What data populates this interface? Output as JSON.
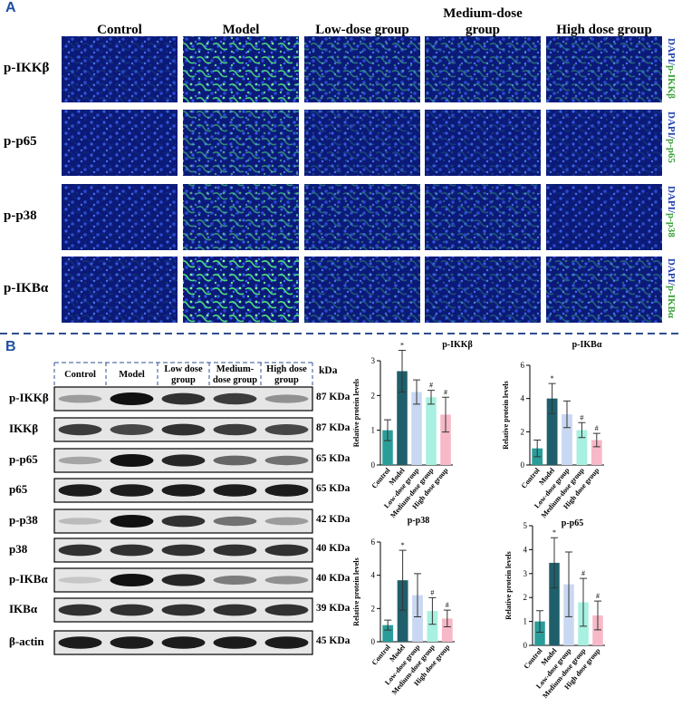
{
  "panel_a": {
    "label": "A",
    "columns": [
      "Control",
      "Model",
      "Low-dose group",
      "Medium-dose group",
      "High dose group"
    ],
    "rows": [
      {
        "label": "p-IKKβ",
        "stain": [
          "DAPI/",
          "p-IKKβ"
        ]
      },
      {
        "label": "p-p65",
        "stain": [
          "DAPI/",
          "p-p65"
        ]
      },
      {
        "label": "p-p38",
        "stain": [
          "DAPI/",
          "p-p38"
        ]
      },
      {
        "label": "p-IKBα",
        "stain": [
          "DAPI/",
          "p-IKBα"
        ]
      }
    ]
  },
  "panel_b": {
    "label": "B",
    "groups": [
      "Control",
      "Model",
      "Low dose group",
      "Medium-dose group",
      "High dose group"
    ],
    "kda_header": "kDa",
    "rows": [
      {
        "label": "p-IKKβ",
        "kda": "87 KDa"
      },
      {
        "label": "IKKβ",
        "kda": "87 KDa"
      },
      {
        "label": "p-p65",
        "kda": "65 KDa"
      },
      {
        "label": "p65",
        "kda": "65 KDa"
      },
      {
        "label": "p-p38",
        "kda": "42 KDa"
      },
      {
        "label": "p38",
        "kda": "40 KDa"
      },
      {
        "label": "p-IKBα",
        "kda": "40 KDa"
      },
      {
        "label": "IKBα",
        "kda": "39 KDa"
      },
      {
        "label": "β-actin",
        "kda": "45 KDa"
      }
    ]
  },
  "chart_data": [
    {
      "type": "bar",
      "title": "p-IKKβ",
      "y_label": "Relative protein levels",
      "categories": [
        "Control",
        "Model",
        "Low-dose group",
        "Medium-dose group",
        "High dose group"
      ],
      "values": [
        1.0,
        2.7,
        2.1,
        1.95,
        1.45
      ],
      "errors": [
        0.3,
        0.6,
        0.35,
        0.2,
        0.5
      ],
      "annotations": [
        null,
        "*",
        null,
        "#",
        "#"
      ],
      "colors": [
        "#2a9d9a",
        "#1f5f6b",
        "#c9d8f2",
        "#a8f0e0",
        "#f7b8c8"
      ],
      "ylim": [
        0,
        3
      ],
      "yticks": [
        0,
        1,
        2,
        3
      ]
    },
    {
      "type": "bar",
      "title": "p-IKBα",
      "y_label": "Relative protein levels",
      "categories": [
        "Control",
        "Model",
        "Low-dose group",
        "Medium-dose group",
        "High dose group"
      ],
      "values": [
        1.0,
        4.0,
        3.05,
        2.1,
        1.5
      ],
      "errors": [
        0.5,
        0.9,
        0.8,
        0.45,
        0.4
      ],
      "annotations": [
        null,
        "*",
        null,
        "#",
        "#"
      ],
      "colors": [
        "#2a9d9a",
        "#1f5f6b",
        "#c9d8f2",
        "#a8f0e0",
        "#f7b8c8"
      ],
      "ylim": [
        0,
        6
      ],
      "yticks": [
        0,
        2,
        4,
        6
      ]
    },
    {
      "type": "bar",
      "title": "p-p38",
      "y_label": "Relative protein levels",
      "categories": [
        "Control",
        "Model",
        "Low-dose group",
        "Medium-dose group",
        "High dose group"
      ],
      "values": [
        1.0,
        3.7,
        2.8,
        1.85,
        1.4
      ],
      "errors": [
        0.3,
        1.8,
        1.3,
        0.8,
        0.5
      ],
      "annotations": [
        null,
        "*",
        null,
        "#",
        "#"
      ],
      "colors": [
        "#2a9d9a",
        "#1f5f6b",
        "#c9d8f2",
        "#a8f0e0",
        "#f7b8c8"
      ],
      "ylim": [
        0,
        6
      ],
      "yticks": [
        0,
        2,
        4,
        6
      ]
    },
    {
      "type": "bar",
      "title": "p-p65",
      "y_label": "Relative protein levels",
      "categories": [
        "Control",
        "Model",
        "Low-dose group",
        "Medium-dose group",
        "High dose group"
      ],
      "values": [
        1.0,
        3.45,
        2.55,
        1.8,
        1.25
      ],
      "errors": [
        0.45,
        1.05,
        1.35,
        1.0,
        0.6
      ],
      "annotations": [
        null,
        "*",
        null,
        "#",
        "#"
      ],
      "colors": [
        "#2a9d9a",
        "#1f5f6b",
        "#c9d8f2",
        "#a8f0e0",
        "#f7b8c8"
      ],
      "ylim": [
        0,
        5
      ],
      "yticks": [
        0,
        1,
        2,
        3,
        4,
        5
      ]
    }
  ]
}
